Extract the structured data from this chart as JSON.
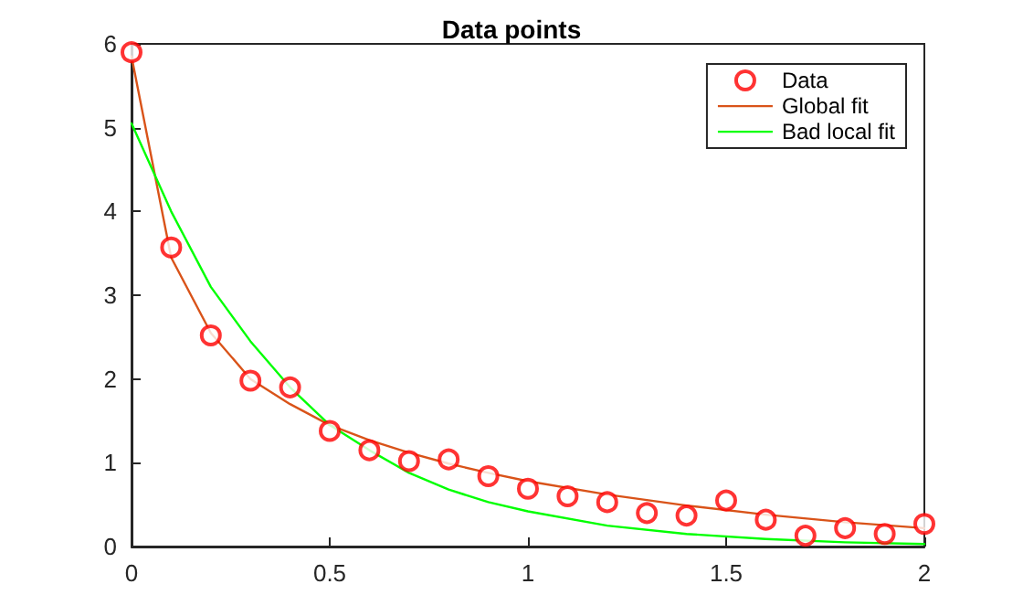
{
  "chart_data": {
    "type": "scatter",
    "title": "Data points",
    "xlim": [
      0,
      2
    ],
    "xticks": [
      0,
      0.5,
      1,
      1.5,
      2
    ],
    "ylim": [
      0,
      6
    ],
    "yticks": [
      0,
      1,
      2,
      3,
      4,
      5,
      6
    ],
    "grid": false,
    "legend": "top right",
    "series": [
      {
        "name": "Data",
        "marker": "circle",
        "color": "#ff0000",
        "x": [
          0,
          0.1,
          0.2,
          0.3,
          0.4,
          0.5,
          0.6,
          0.7,
          0.8,
          0.9,
          1.0,
          1.1,
          1.2,
          1.3,
          1.4,
          1.5,
          1.6,
          1.7,
          1.8,
          1.9,
          2.0
        ],
        "values": [
          5.9,
          3.57,
          2.52,
          1.98,
          1.9,
          1.38,
          1.15,
          1.02,
          1.04,
          0.84,
          0.69,
          0.6,
          0.53,
          0.4,
          0.37,
          0.55,
          0.32,
          0.13,
          0.22,
          0.15,
          0.27
        ]
      },
      {
        "name": "Global fit",
        "type": "line",
        "marker": "none",
        "color": "#d95319",
        "x": [
          0,
          0.1,
          0.2,
          0.3,
          0.4,
          0.5,
          0.6,
          0.7,
          0.8,
          0.9,
          1.0,
          1.2,
          1.4,
          1.6,
          1.8,
          2.0
        ],
        "values": [
          5.85,
          3.45,
          2.55,
          2.0,
          1.7,
          1.45,
          1.27,
          1.12,
          0.99,
          0.88,
          0.78,
          0.62,
          0.49,
          0.38,
          0.29,
          0.22
        ]
      },
      {
        "name": "Bad local fit",
        "type": "line",
        "marker": "none",
        "color": "#00ff00",
        "x": [
          0,
          0.1,
          0.2,
          0.3,
          0.4,
          0.5,
          0.6,
          0.7,
          0.8,
          0.9,
          1.0,
          1.2,
          1.4,
          1.6,
          1.8,
          2.0
        ],
        "values": [
          5.05,
          4.0,
          3.1,
          2.45,
          1.9,
          1.45,
          1.15,
          0.88,
          0.68,
          0.53,
          0.42,
          0.25,
          0.15,
          0.09,
          0.05,
          0.03
        ]
      }
    ]
  }
}
